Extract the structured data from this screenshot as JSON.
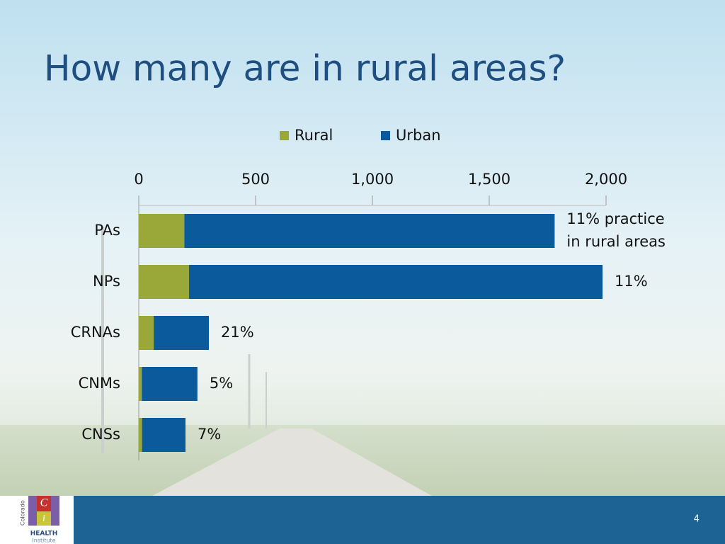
{
  "chart_data": {
    "type": "bar",
    "orientation": "horizontal",
    "stacked": true,
    "title": "How many are in rural areas?",
    "categories": [
      "PAs",
      "NPs",
      "CRNAs",
      "CNMs",
      "CNSs"
    ],
    "series": [
      {
        "name": "Rural",
        "color": "#9aa83a",
        "values": [
          195,
          215,
          64,
          13,
          14
        ]
      },
      {
        "name": "Urban",
        "color": "#0b5a9c",
        "values": [
          1585,
          1770,
          236,
          238,
          186
        ]
      }
    ],
    "xlim": [
      0,
      2000
    ],
    "xticks": [
      0,
      500,
      {
        "value": 1000,
        "label": "1,000"
      },
      {
        "value": 1500,
        "label": "1,500"
      },
      {
        "value": 2000,
        "label": "2,000"
      }
    ],
    "legend": "top",
    "annotations": [
      [
        "11% practice",
        "in rural areas"
      ],
      [
        "11%"
      ],
      [
        "21%"
      ],
      [
        "5%"
      ],
      [
        "7%"
      ]
    ]
  },
  "slide_number": "4",
  "logo": {
    "letters": [
      "C",
      "i"
    ],
    "side": "Colorado",
    "name": "HEALTH",
    "sub": "Institute"
  }
}
